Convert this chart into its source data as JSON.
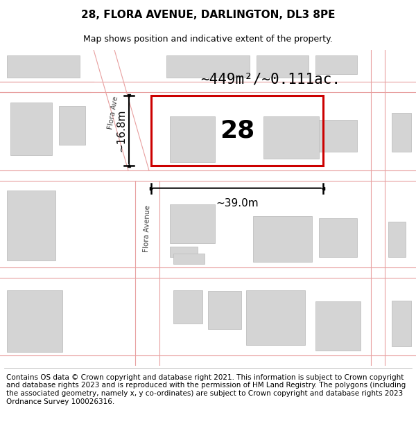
{
  "title": "28, FLORA AVENUE, DARLINGTON, DL3 8PE",
  "subtitle": "Map shows position and indicative extent of the property.",
  "footer": "Contains OS data © Crown copyright and database right 2021. This information is subject to Crown copyright and database rights 2023 and is reproduced with the permission of HM Land Registry. The polygons (including the associated geometry, namely x, y co-ordinates) are subject to Crown copyright and database rights 2023 Ordnance Survey 100026316.",
  "map_bg": "#f0eeee",
  "road_line_color": "#e8a0a0",
  "building_color": "#d4d4d4",
  "building_edge": "#c0c0c0",
  "highlight_color": "#cc0000",
  "area_text": "~449m²/~0.111ac.",
  "width_text": "~39.0m",
  "height_text": "~16.8m",
  "number_text": "28",
  "road_label_upper": "Flora Ave",
  "road_label_lower": "Flora Avenue",
  "title_fontsize": 11,
  "subtitle_fontsize": 9,
  "footer_fontsize": 7.5,
  "area_fontsize": 15,
  "dim_fontsize": 11,
  "number_fontsize": 26
}
